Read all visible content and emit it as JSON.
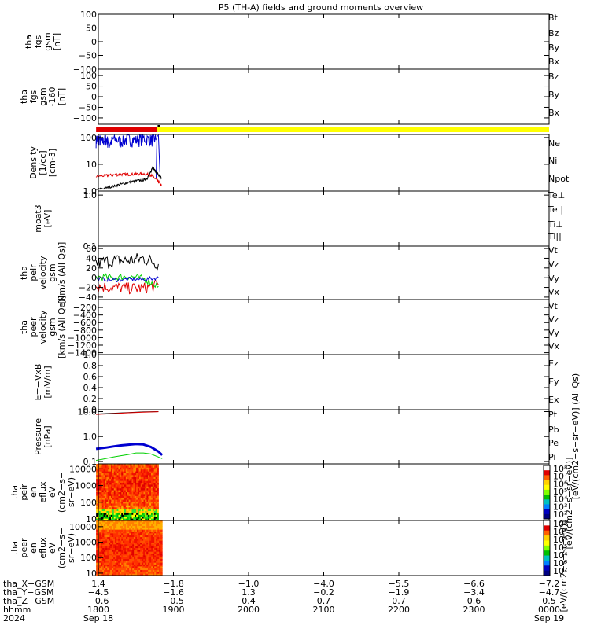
{
  "title": "P5 (TH-A) fields and ground moments overview",
  "colors": {
    "black": "#000000",
    "red": "#e00000",
    "green": "#00d000",
    "blue": "#0000d0",
    "yellow": "#ffff00"
  },
  "chart_data": [
    {
      "id": "p1",
      "type": "line",
      "ylabel": [
        "tha",
        "fgs",
        "gsm",
        "[nT]"
      ],
      "ylim": [
        -100,
        100
      ],
      "yticks": [
        100,
        50,
        0,
        -50,
        -100
      ],
      "tick_labels": [
        "100",
        "50",
        "0",
        "−50",
        "−100"
      ],
      "legend": [
        {
          "name": "Bt",
          "color": "black"
        },
        {
          "name": "Bz",
          "color": "red"
        },
        {
          "name": "By",
          "color": "green"
        },
        {
          "name": "Bx",
          "color": "blue"
        }
      ],
      "series": []
    },
    {
      "id": "p2",
      "type": "line",
      "ylabel": [
        "tha",
        "fgs",
        "gsm",
        "-160",
        "[nT]"
      ],
      "ylim": [
        -130,
        130
      ],
      "yticks": [
        100,
        50,
        0,
        -50,
        -100
      ],
      "tick_labels": [
        "100",
        "50",
        "0",
        "−50",
        "−100"
      ],
      "legend": [
        {
          "name": "Bz",
          "color": "red"
        },
        {
          "name": "By",
          "color": "green"
        },
        {
          "name": "Bx",
          "color": "blue"
        }
      ],
      "series": []
    },
    {
      "id": "bar",
      "type": "status_bar",
      "segments": [
        {
          "x0": 17.97,
          "x1": 18.78,
          "color": "red"
        },
        {
          "x0": 18.78,
          "x1": 24.0,
          "color": "yellow"
        }
      ],
      "marker_x": 18.8
    },
    {
      "id": "p3",
      "type": "line",
      "log": true,
      "ylabel": [
        "Density",
        "[1/cc]",
        "[cm-3]"
      ],
      "ylim": [
        1,
        130
      ],
      "yticks": [
        100,
        10,
        1
      ],
      "tick_labels": [
        "100",
        "10",
        "1.0"
      ],
      "legend": [
        {
          "name": "Ne",
          "color": "red"
        },
        {
          "name": "Ni",
          "color": "black"
        },
        {
          "name": "Npot",
          "color": "blue"
        }
      ],
      "series": [
        {
          "color": "blue",
          "x": [
            17.97,
            18.0,
            18.05,
            18.1,
            18.15,
            18.2,
            18.3,
            18.4,
            18.5,
            18.6,
            18.7,
            18.77
          ],
          "y": [
            80,
            95,
            70,
            90,
            60,
            88,
            75,
            90,
            82,
            95,
            85,
            90
          ],
          "jitter": 0.25
        },
        {
          "color": "blue",
          "x": [
            18.77,
            18.78,
            18.8,
            18.82
          ],
          "y": [
            3,
            110,
            120,
            5
          ]
        },
        {
          "color": "red",
          "x": [
            17.97,
            18.1,
            18.2,
            18.3,
            18.4,
            18.5,
            18.6,
            18.7,
            18.75,
            18.8,
            18.84
          ],
          "y": [
            3.5,
            3.8,
            4.0,
            4.2,
            4.2,
            4.3,
            4.5,
            4.0,
            3.0,
            2.2,
            1.6
          ],
          "jitter": 0.06
        },
        {
          "color": "black",
          "x": [
            17.97,
            18.1,
            18.2,
            18.3,
            18.4,
            18.5,
            18.6,
            18.65,
            18.7,
            18.72,
            18.75,
            18.8,
            18.84
          ],
          "y": [
            1.1,
            1.3,
            1.5,
            1.8,
            2.1,
            2.4,
            2.6,
            3.0,
            5,
            8,
            6,
            4,
            3
          ],
          "jitter": 0.05
        }
      ]
    },
    {
      "id": "p4",
      "type": "line",
      "log": true,
      "ylabel": [
        "moat3",
        "[eV]"
      ],
      "ylim": [
        0.1,
        1.2
      ],
      "yticks": [
        1.0,
        0.1
      ],
      "tick_labels": [
        "1.0",
        "0.1"
      ],
      "legend": [
        {
          "name": "Te⊥",
          "color": "red"
        },
        {
          "name": "Te||",
          "color": "black"
        },
        {
          "name": "Ti⊥",
          "color": "blue"
        },
        {
          "name": "Ti||",
          "color": "green"
        }
      ],
      "series": []
    },
    {
      "id": "p5",
      "type": "line",
      "ylabel": [
        "tha",
        "peir",
        "velocity",
        "gsm",
        "[km/s (All Qs)]"
      ],
      "ylim": [
        -45,
        65
      ],
      "yticks": [
        60,
        40,
        20,
        0,
        -20,
        -40
      ],
      "tick_labels": [
        "60",
        "40",
        "20",
        "0",
        "−20",
        "−40"
      ],
      "legend": [
        {
          "name": "Vt",
          "color": "black"
        },
        {
          "name": "Vz",
          "color": "red"
        },
        {
          "name": "Vy",
          "color": "green"
        },
        {
          "name": "Vx",
          "color": "blue"
        }
      ],
      "series": [
        {
          "color": "black",
          "x": [
            17.97,
            18.2,
            18.4,
            18.6,
            18.8
          ],
          "y": [
            30,
            35,
            35,
            40,
            28
          ],
          "jitter": 14
        },
        {
          "color": "red",
          "x": [
            17.97,
            18.2,
            18.4,
            18.6,
            18.8
          ],
          "y": [
            -18,
            -20,
            -22,
            -22,
            -15
          ],
          "jitter": 12
        },
        {
          "color": "green",
          "x": [
            17.97,
            18.2,
            18.4,
            18.6,
            18.8
          ],
          "y": [
            2,
            0,
            3,
            -2,
            -18
          ],
          "jitter": 7
        },
        {
          "color": "blue",
          "x": [
            17.97,
            18.2,
            18.4,
            18.6,
            18.8
          ],
          "y": [
            -2,
            -5,
            -3,
            -4,
            0
          ],
          "jitter": 4
        }
      ]
    },
    {
      "id": "p6",
      "type": "line",
      "ylabel": [
        "tha",
        "peer",
        "velocity",
        "gsm",
        "[km/s (All Qe)]"
      ],
      "ylim": [
        -1450,
        10
      ],
      "yticks": [
        -200,
        -400,
        -600,
        -800,
        -1000,
        -1200,
        -1400
      ],
      "tick_labels": [
        "−200",
        "−400",
        "−600",
        "−800",
        "−1000",
        "−1200",
        "−1400"
      ],
      "legend": [
        {
          "name": "Vt",
          "color": "black"
        },
        {
          "name": "Vz",
          "color": "red"
        },
        {
          "name": "Vy",
          "color": "green"
        },
        {
          "name": "Vx",
          "color": "blue"
        }
      ],
      "series": []
    },
    {
      "id": "p7",
      "type": "line",
      "ylabel": [
        "E=−VxB",
        "[mV/m]"
      ],
      "ylim": [
        0,
        1.0
      ],
      "yticks": [
        1.0,
        0.8,
        0.6,
        0.4,
        0.2,
        0.0
      ],
      "tick_labels": [
        "1.0",
        "0.8",
        "0.6",
        "0.4",
        "0.2",
        "0.0"
      ],
      "legend": [
        {
          "name": "Ez",
          "color": "red"
        },
        {
          "name": "Ey",
          "color": "green"
        },
        {
          "name": "Ex",
          "color": "blue"
        }
      ],
      "series": []
    },
    {
      "id": "p8",
      "type": "line",
      "log": true,
      "ylabel": [
        "Pressure",
        "[nPa]"
      ],
      "ylim": [
        0.08,
        12
      ],
      "yticks": [
        10,
        1,
        0.1
      ],
      "tick_labels": [
        "10.0",
        "1.0",
        "0.1"
      ],
      "legend": [
        {
          "name": "Pt",
          "color": "black"
        },
        {
          "name": "Pb",
          "color": "red"
        },
        {
          "name": "Pe",
          "color": "green"
        },
        {
          "name": "Pi",
          "color": "blue"
        }
      ],
      "series": [
        {
          "color": "blue",
          "x": [
            17.97,
            18.1,
            18.2,
            18.3,
            18.4,
            18.5,
            18.6,
            18.7,
            18.8,
            18.85
          ],
          "y": [
            0.32,
            0.36,
            0.4,
            0.44,
            0.47,
            0.5,
            0.48,
            0.38,
            0.25,
            0.18
          ],
          "width": 3
        },
        {
          "color": "green",
          "x": [
            17.97,
            18.1,
            18.2,
            18.3,
            18.4,
            18.5,
            18.6,
            18.7,
            18.8,
            18.85
          ],
          "y": [
            0.11,
            0.13,
            0.15,
            0.17,
            0.19,
            0.22,
            0.22,
            0.2,
            0.15,
            0.13
          ]
        },
        {
          "color": "black",
          "x": [
            17.97,
            18.2,
            18.4,
            18.6,
            18.8
          ],
          "y": [
            8.0,
            8.6,
            9.2,
            9.7,
            10.0
          ]
        },
        {
          "color": "red",
          "x": [
            17.97,
            18.2,
            18.4,
            18.6,
            18.8
          ],
          "y": [
            7.7,
            8.3,
            9.0,
            9.5,
            9.9
          ]
        }
      ]
    },
    {
      "id": "p9",
      "type": "heatmap",
      "log": true,
      "ylabel": [
        "tha",
        "peir",
        "en",
        "eflux",
        "eV",
        "(cm2−s−",
        "sr−eV)"
      ],
      "ylim": [
        8,
        20000
      ],
      "yticks": [
        10000,
        1000,
        100,
        10
      ],
      "tick_labels": [
        "10000",
        "1000",
        "100",
        "10"
      ],
      "x_range": [
        17.97,
        18.8
      ]
    },
    {
      "id": "p10",
      "type": "heatmap",
      "log": true,
      "ylabel": [
        "tha",
        "peer",
        "en",
        "eflux",
        "eV",
        "(cm2−s−",
        "sr−eV)"
      ],
      "ylim": [
        7,
        25000
      ],
      "yticks": [
        10000,
        1000,
        100,
        10
      ],
      "tick_labels": [
        "10000",
        "1000",
        "100",
        "10"
      ],
      "x_range": [
        17.97,
        18.85
      ]
    }
  ],
  "right_labels": {
    "pressure_units": "[eV/(cm2−s−sr−eV)] (All Qs)",
    "ions_units": "[eV/(cm2−s−sr−eV)]",
    "peer_units": "[eV/(cm2−s−sr−eV)]"
  },
  "colorbar": {
    "ticks": [
      "10⁸",
      "10⁷",
      "10⁶",
      "10⁵",
      "10⁴",
      "10³",
      "10²"
    ]
  },
  "x_axis": {
    "xlim": [
      18.0,
      24.0
    ],
    "tick_positions": [
      18,
      19,
      20,
      21,
      22,
      23,
      24
    ],
    "row_labels": [
      "tha_X−GSM",
      "tha_Y−GSM",
      "tha_Z−GSM",
      "hhmm",
      "2024"
    ],
    "rows": [
      [
        "1.4",
        "−1.8",
        "−1.0",
        "−4.0",
        "−5.5",
        "−6.6",
        "−7.2"
      ],
      [
        "−4.5",
        "−1.6",
        "1.3",
        "−0.2",
        "−1.9",
        "−3.4",
        "−4.7"
      ],
      [
        "−0.6",
        "−0.5",
        "0.4",
        "0.7",
        "0.7",
        "0.6",
        "0.5"
      ],
      [
        "1800",
        "1900",
        "2000",
        "2100",
        "2200",
        "2300",
        "0000"
      ],
      [
        "Sep 18",
        "",
        "",
        "",
        "",
        "",
        "Sep 19"
      ]
    ]
  }
}
